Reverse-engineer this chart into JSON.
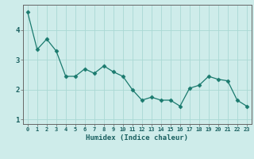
{
  "x": [
    0,
    1,
    2,
    3,
    4,
    5,
    6,
    7,
    8,
    9,
    10,
    11,
    12,
    13,
    14,
    15,
    16,
    17,
    18,
    19,
    20,
    21,
    22,
    23
  ],
  "y": [
    4.6,
    3.35,
    3.7,
    3.3,
    2.45,
    2.45,
    2.7,
    2.55,
    2.8,
    2.6,
    2.45,
    2.0,
    1.65,
    1.75,
    1.65,
    1.65,
    1.45,
    2.05,
    2.15,
    2.45,
    2.35,
    2.3,
    1.65,
    1.45
  ],
  "xlabel": "Humidex (Indice chaleur)",
  "ylim": [
    0.85,
    4.85
  ],
  "xlim": [
    -0.5,
    23.5
  ],
  "line_color": "#1a7a6e",
  "marker_color": "#1a7a6e",
  "bg_color": "#ceecea",
  "grid_color": "#aad8d4",
  "axis_color": "#666666",
  "tick_label_color": "#1a6060",
  "xlabel_color": "#1a6060",
  "yticks": [
    1,
    2,
    3,
    4
  ],
  "xticks": [
    0,
    1,
    2,
    3,
    4,
    5,
    6,
    7,
    8,
    9,
    10,
    11,
    12,
    13,
    14,
    15,
    16,
    17,
    18,
    19,
    20,
    21,
    22,
    23
  ]
}
